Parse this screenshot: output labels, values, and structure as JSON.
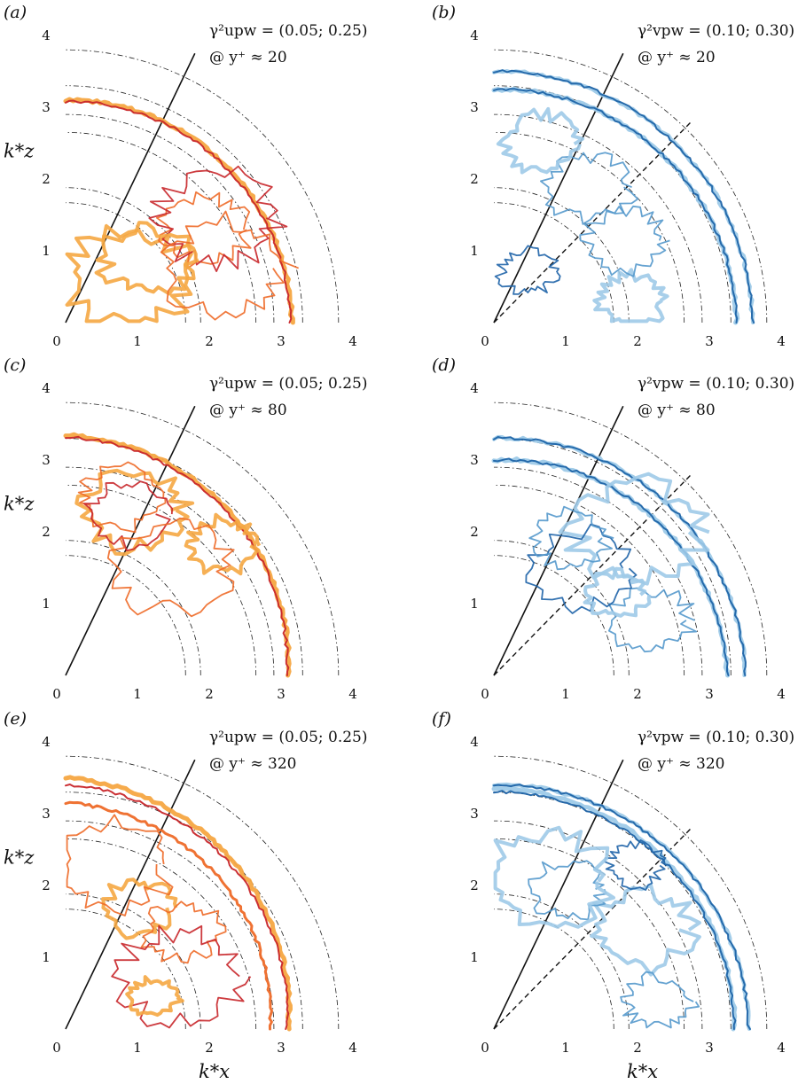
{
  "colors": {
    "orange_light": "#f5a742",
    "orange_mid": "#ee6a28",
    "red_dark": "#c8262a",
    "blue_light": "#9ecae8",
    "blue_mid": "#5599cc",
    "blue_dark": "#1f64a8",
    "guide": "#222222"
  },
  "chart_data": [
    {
      "type": "contour",
      "panel_label": "(a)",
      "annotation_line1": "γ²upw = (0.05; 0.25)",
      "annotation_line2": "@ y⁺ ≈ 20",
      "coherence_levels": [
        0.05,
        0.25
      ],
      "xlim": [
        0,
        4
      ],
      "ylim": [
        0,
        4
      ],
      "xticks": [
        "0",
        "1",
        "2",
        "3",
        "4"
      ],
      "yticks": [
        "1",
        "2",
        "3",
        "4"
      ],
      "xlabel": "",
      "ylabel": "k*z",
      "reference_arc_radii": [
        1.67,
        1.88,
        2.65,
        2.9,
        3.3,
        3.8
      ],
      "dashed_guide": false,
      "series": [
        {
          "colorKey": "orange_light",
          "width": 5,
          "r0": 3.15,
          "r1": 3.1
        },
        {
          "colorKey": "red_dark",
          "width": 2,
          "r0": 3.13,
          "r1": 3.08
        }
      ]
    },
    {
      "type": "contour",
      "panel_label": "(b)",
      "annotation_line1": "γ²vpw = (0.10; 0.30)",
      "annotation_line2": "@ y⁺ ≈ 20",
      "coherence_levels": [
        0.1,
        0.3
      ],
      "xlim": [
        0,
        4
      ],
      "ylim": [
        0,
        4
      ],
      "xticks": [
        "0",
        "1",
        "2",
        "3",
        "4"
      ],
      "yticks": [
        "1",
        "2",
        "3",
        "4"
      ],
      "xlabel": "",
      "ylabel": "",
      "reference_arc_radii": [
        1.67,
        1.88,
        2.65,
        2.9,
        3.3,
        3.8
      ],
      "dashed_guide": true,
      "series": [
        {
          "colorKey": "blue_light",
          "width": 5,
          "r0": 3.38,
          "r1": 3.25
        },
        {
          "colorKey": "blue_dark",
          "width": 2,
          "r0": 3.38,
          "r1": 3.25
        },
        {
          "colorKey": "blue_light",
          "width": 4,
          "r0": 3.6,
          "r1": 3.5
        },
        {
          "colorKey": "blue_dark",
          "width": 2,
          "r0": 3.6,
          "r1": 3.5
        }
      ]
    },
    {
      "type": "contour",
      "panel_label": "(c)",
      "annotation_line1": "γ²upw = (0.05; 0.25)",
      "annotation_line2": "@ y⁺ ≈ 80",
      "coherence_levels": [
        0.05,
        0.25
      ],
      "xlim": [
        0,
        4
      ],
      "ylim": [
        0,
        4
      ],
      "xticks": [
        "0",
        "1",
        "2",
        "3",
        "4"
      ],
      "yticks": [
        "1",
        "2",
        "3",
        "4"
      ],
      "xlabel": "",
      "ylabel": "k*z",
      "reference_arc_radii": [
        1.67,
        1.88,
        2.65,
        2.9,
        3.3,
        3.8
      ],
      "dashed_guide": false,
      "series": [
        {
          "colorKey": "orange_light",
          "width": 5,
          "r0": 3.1,
          "r1": 3.35
        },
        {
          "colorKey": "red_dark",
          "width": 2,
          "r0": 3.08,
          "r1": 3.32
        }
      ]
    },
    {
      "type": "contour",
      "panel_label": "(d)",
      "annotation_line1": "γ²vpw = (0.10; 0.30)",
      "annotation_line2": "@ y⁺ ≈ 80",
      "coherence_levels": [
        0.1,
        0.3
      ],
      "xlim": [
        0,
        4
      ],
      "ylim": [
        0,
        4
      ],
      "xticks": [
        "0",
        "1",
        "2",
        "3",
        "4"
      ],
      "yticks": [
        "1",
        "2",
        "3",
        "4"
      ],
      "xlabel": "",
      "ylabel": "",
      "reference_arc_radii": [
        1.67,
        1.88,
        2.65,
        2.9,
        3.3,
        3.8
      ],
      "dashed_guide": true,
      "series": [
        {
          "colorKey": "blue_light",
          "width": 5,
          "r0": 3.25,
          "r1": 3.0
        },
        {
          "colorKey": "blue_dark",
          "width": 2,
          "r0": 3.25,
          "r1": 3.0
        },
        {
          "colorKey": "blue_light",
          "width": 4,
          "r0": 3.5,
          "r1": 3.3
        },
        {
          "colorKey": "blue_dark",
          "width": 2,
          "r0": 3.5,
          "r1": 3.3
        }
      ]
    },
    {
      "type": "contour",
      "panel_label": "(e)",
      "annotation_line1": "γ²upw = (0.05; 0.25)",
      "annotation_line2": "@ y⁺ ≈ 320",
      "coherence_levels": [
        0.05,
        0.25
      ],
      "xlim": [
        0,
        4
      ],
      "ylim": [
        0,
        4
      ],
      "xticks": [
        "0",
        "1",
        "2",
        "3",
        "4"
      ],
      "yticks": [
        "1",
        "2",
        "3",
        "4"
      ],
      "xlabel": "k*x",
      "ylabel": "k*z",
      "reference_arc_radii": [
        1.67,
        1.88,
        2.65,
        2.9,
        3.3,
        3.8
      ],
      "dashed_guide": false,
      "series": [
        {
          "colorKey": "orange_light",
          "width": 5,
          "r0": 3.1,
          "r1": 3.5
        },
        {
          "colorKey": "red_dark",
          "width": 2,
          "r0": 3.08,
          "r1": 3.4
        },
        {
          "colorKey": "orange_mid",
          "width": 3,
          "r0": 2.85,
          "r1": 3.15
        }
      ]
    },
    {
      "type": "contour",
      "panel_label": "(f)",
      "annotation_line1": "γ²vpw = (0.10; 0.30)",
      "annotation_line2": "@ y⁺ ≈ 320",
      "coherence_levels": [
        0.1,
        0.3
      ],
      "xlim": [
        0,
        4
      ],
      "ylim": [
        0,
        4
      ],
      "xticks": [
        "0",
        "1",
        "2",
        "3",
        "4"
      ],
      "yticks": [
        "1",
        "2",
        "3",
        "4"
      ],
      "xlabel": "k*x",
      "ylabel": "",
      "reference_arc_radii": [
        1.67,
        1.88,
        2.65,
        2.9,
        3.3,
        3.8
      ],
      "dashed_guide": true,
      "series": [
        {
          "colorKey": "blue_light",
          "width": 5,
          "r0": 3.35,
          "r1": 3.35
        },
        {
          "colorKey": "blue_dark",
          "width": 2,
          "r0": 3.35,
          "r1": 3.3
        },
        {
          "colorKey": "blue_light",
          "width": 4,
          "r0": 3.55,
          "r1": 3.4
        },
        {
          "colorKey": "blue_dark",
          "width": 2,
          "r0": 3.55,
          "r1": 3.4
        }
      ]
    }
  ]
}
